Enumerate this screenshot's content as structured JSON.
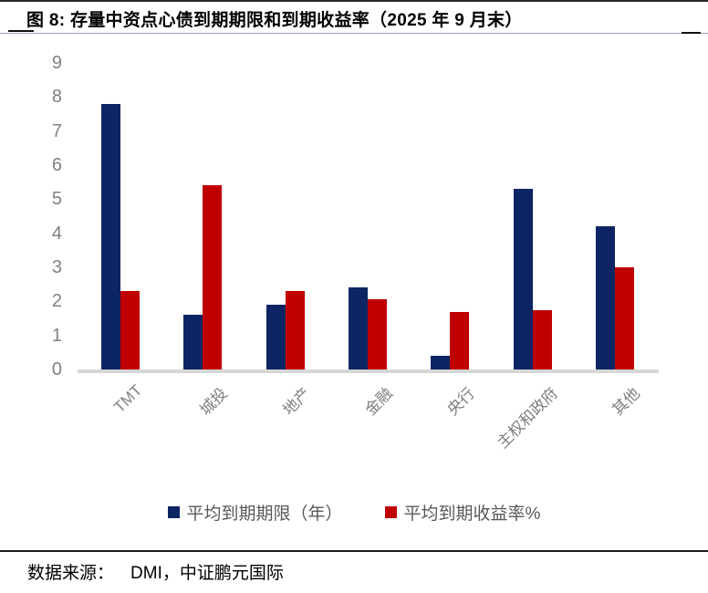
{
  "title": "图 8: 存量中资点心债到期期限和到期收益率（2025 年 9 月末）",
  "source": {
    "label": "数据来源：",
    "value": "DMI，中证鹏元国际"
  },
  "colors": {
    "series_maturity": "#0e2563",
    "series_yield": "#c00000",
    "baseline": "#d6d6d6",
    "axis_text": "#808080",
    "legend_text": "#595959"
  },
  "chart_data": {
    "type": "bar",
    "title": "图 8: 存量中资点心债到期期限和到期收益率（2025 年 9 月末）",
    "categories": [
      "TMT",
      "城投",
      "地产",
      "金融",
      "央行",
      "主权和政府",
      "其他"
    ],
    "series": [
      {
        "name": "平均到期期限（年）",
        "color": "#0e2563",
        "values": [
          7.8,
          1.6,
          1.9,
          2.4,
          0.4,
          5.3,
          4.2
        ]
      },
      {
        "name": "平均到期收益率%",
        "color": "#c00000",
        "values": [
          2.3,
          5.4,
          2.3,
          2.05,
          1.7,
          1.75,
          3.0
        ]
      }
    ],
    "xlabel": "",
    "ylabel": "",
    "ylim": [
      0,
      9
    ],
    "ytick_step": 1,
    "grid": false,
    "legend_position": "bottom"
  }
}
